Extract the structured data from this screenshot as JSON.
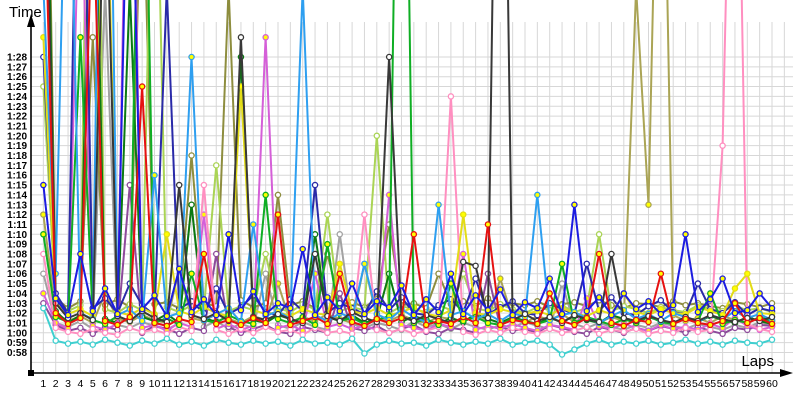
{
  "chart_data": {
    "type": "line",
    "title": "",
    "xlabel": "Laps",
    "ylabel": "Time",
    "x": [
      1,
      2,
      3,
      4,
      5,
      6,
      7,
      8,
      9,
      10,
      11,
      12,
      13,
      14,
      15,
      16,
      17,
      18,
      19,
      20,
      21,
      22,
      23,
      24,
      25,
      26,
      27,
      28,
      29,
      30,
      31,
      32,
      33,
      34,
      35,
      36,
      37,
      38,
      39,
      40,
      41,
      42,
      43,
      44,
      45,
      46,
      47,
      48,
      49,
      50,
      51,
      52,
      53,
      54,
      55,
      56,
      57,
      58,
      59,
      60
    ],
    "y_ticks": [
      "0:58",
      "0:59",
      "1:00",
      "1:01",
      "1:02",
      "1:03",
      "1:04",
      "1:05",
      "1:06",
      "1:07",
      "1:08",
      "1:09",
      "1:10",
      "1:11",
      "1:12",
      "1:13",
      "1:14",
      "1:15",
      "1:16",
      "1:17",
      "1:18",
      "1:19",
      "1:20",
      "1:21",
      "1:22",
      "1:23",
      "1:24",
      "1:25",
      "1:26",
      "1:27",
      "1:28"
    ],
    "y_tick_seconds_start": 58,
    "ylim_seconds": [
      56,
      92
    ],
    "grid": true,
    "legend": "none",
    "grid_color": "#d7d7d7",
    "axis_color": "#000000",
    "series": [
      {
        "name": "gray",
        "color": "#a2a2a2",
        "marker": "#ffffff",
        "values": [
          66.0,
          61.0,
          60.6,
          61.2,
          60.4,
          95.0,
          60.8,
          60.5,
          61.1,
          60.7,
          60.3,
          61.0,
          73.0,
          60.6,
          61.2,
          60.4,
          60.9,
          60.5,
          66.0,
          60.8,
          60.4,
          61.1,
          60.6,
          60.3,
          70.0,
          60.9,
          60.5,
          61.0,
          60.7,
          60.3,
          61.2,
          60.6,
          60.9,
          60.4,
          61.0,
          60.6,
          60.3,
          60.8,
          60.5,
          61.1,
          60.7,
          60.4,
          65.0,
          60.9,
          60.5,
          61.0,
          60.6,
          60.3,
          60.8,
          60.5,
          61.0,
          60.7,
          60.4,
          60.9,
          60.6,
          60.3,
          60.8,
          60.5,
          61.1,
          60.7
        ]
      },
      {
        "name": "olive",
        "color": "#8d8d3e",
        "marker": "#ffffff",
        "values": [
          140.0,
          63.5,
          62.5,
          63.2,
          90.0,
          62.8,
          63.4,
          62.6,
          110.0,
          62.9,
          63.1,
          62.5,
          78.0,
          63.0,
          62.7,
          95.0,
          63.3,
          62.6,
          63.0,
          74.0,
          62.8,
          63.2,
          62.5,
          68.0,
          62.9,
          63.1,
          62.6,
          63.4,
          71.0,
          62.8,
          63.0,
          62.5,
          66.0,
          62.9,
          63.2,
          62.7,
          63.5,
          62.6,
          63.0,
          62.8,
          63.2,
          62.6,
          62.9,
          63.1,
          62.7,
          63.3,
          62.8,
          62.5,
          63.0,
          62.9,
          62.6,
          63.2,
          62.8,
          63.0,
          62.7,
          62.5,
          63.1,
          62.9,
          62.6,
          63.0
        ]
      },
      {
        "name": "darkkhaki",
        "color": "#aaa455",
        "marker": "#ffff00",
        "values": [
          72.0,
          62.0,
          61.2,
          61.7,
          61.0,
          64.0,
          61.4,
          61.1,
          61.8,
          61.3,
          61.0,
          66.5,
          61.5,
          61.2,
          61.9,
          61.4,
          61.0,
          61.7,
          61.3,
          65.0,
          61.1,
          61.6,
          61.2,
          61.9,
          61.4,
          61.0,
          67.0,
          61.5,
          61.2,
          61.8,
          61.3,
          61.0,
          61.6,
          61.4,
          61.1,
          61.8,
          61.2,
          65.5,
          61.5,
          61.0,
          61.7,
          61.3,
          61.9,
          61.1,
          61.4,
          61.0,
          61.6,
          61.2,
          95.0,
          73.0,
          130.0,
          61.8,
          61.2,
          61.5,
          61.0,
          61.7,
          61.3,
          61.0,
          61.5,
          61.2
        ]
      },
      {
        "name": "yellowgreen",
        "color": "#aad455",
        "marker": "#ffffff",
        "values": [
          85.0,
          63.0,
          62.2,
          62.8,
          150.0,
          62.4,
          62.0,
          62.9,
          62.3,
          120.0,
          62.6,
          62.1,
          62.8,
          62.4,
          77.0,
          62.2,
          62.7,
          62.3,
          68.0,
          62.5,
          62.1,
          62.9,
          62.4,
          72.0,
          62.2,
          62.6,
          62.3,
          80.0,
          62.0,
          62.7,
          62.4,
          62.1,
          62.8,
          62.3,
          66.0,
          62.5,
          62.2,
          62.9,
          62.4,
          62.0,
          62.6,
          62.3,
          62.8,
          62.1,
          62.5,
          70.0,
          62.2,
          62.7,
          62.4,
          62.0,
          62.6,
          62.3,
          62.1,
          62.8,
          62.4,
          62.2,
          62.7,
          62.3,
          62.5,
          62.1
        ]
      },
      {
        "name": "darkgreen",
        "color": "#0b7a12",
        "marker": "#ffffff",
        "values": [
          130.0,
          62.2,
          61.0,
          61.8,
          120.0,
          61.4,
          61.0,
          95.0,
          61.6,
          61.2,
          61.9,
          61.0,
          73.0,
          61.5,
          61.1,
          61.7,
          88.0,
          61.3,
          61.0,
          61.8,
          61.4,
          61.0,
          70.0,
          61.6,
          61.2,
          61.8,
          61.0,
          61.4,
          66.0,
          61.1,
          61.7,
          61.3,
          60.9,
          61.5,
          61.1,
          61.9,
          61.4,
          61.0,
          61.6,
          61.2,
          60.9,
          61.5,
          61.1,
          61.7,
          61.3,
          61.0,
          61.8,
          61.4,
          61.0,
          61.6,
          61.2,
          60.9,
          61.5,
          61.1,
          61.7,
          61.3,
          61.0,
          61.6,
          61.2,
          60.9
        ]
      },
      {
        "name": "purple",
        "color": "#8d4a9b",
        "marker": "#ffffff",
        "values": [
          63.0,
          60.8,
          60.2,
          60.5,
          59.9,
          60.6,
          60.3,
          75.0,
          60.0,
          60.7,
          60.4,
          59.9,
          60.5,
          60.2,
          68.0,
          60.6,
          60.0,
          60.4,
          60.8,
          60.1,
          59.9,
          60.6,
          60.3,
          60.0,
          64.0,
          60.5,
          60.2,
          60.7,
          60.0,
          60.4,
          60.8,
          60.1,
          59.9,
          60.5,
          60.3,
          60.0,
          66.0,
          60.6,
          60.2,
          60.4,
          60.0,
          60.8,
          60.5,
          60.1,
          59.9,
          60.6,
          60.3,
          60.0,
          60.5,
          60.2,
          60.7,
          60.4,
          60.0,
          60.6,
          60.2,
          59.9,
          60.5,
          60.3,
          60.8,
          60.7
        ]
      },
      {
        "name": "orchid",
        "color": "#d55fd8",
        "marker": "#ffff00",
        "values": [
          64.0,
          61.0,
          60.4,
          110.0,
          60.7,
          60.3,
          60.9,
          130.0,
          60.5,
          60.8,
          60.2,
          61.0,
          60.6,
          72.0,
          60.4,
          60.9,
          60.3,
          60.7,
          90.0,
          60.5,
          60.8,
          60.2,
          66.0,
          60.6,
          60.9,
          60.4,
          60.7,
          60.3,
          74.0,
          60.8,
          60.5,
          60.2,
          60.9,
          60.6,
          68.0,
          60.3,
          60.7,
          60.4,
          60.9,
          60.5,
          60.2,
          60.8,
          60.6,
          60.3,
          63.5,
          60.7,
          60.4,
          60.9,
          60.5,
          60.2,
          60.8,
          60.4,
          60.6,
          60.3,
          60.9,
          60.5,
          61.5,
          60.7,
          60.3,
          60.6
        ]
      },
      {
        "name": "mediumblue",
        "color": "#2a2aa8",
        "marker": "#ffffff",
        "values": [
          88.0,
          64.0,
          62.0,
          130.0,
          62.5,
          63.5,
          62.0,
          65.0,
          62.8,
          61.8,
          95.0,
          62.4,
          63.2,
          62.0,
          64.5,
          61.9,
          62.6,
          63.8,
          62.1,
          61.8,
          63.4,
          62.2,
          75.0,
          62.0,
          63.0,
          62.5,
          61.9,
          64.2,
          62.3,
          63.6,
          62.0,
          61.8,
          62.8,
          63.4,
          62.1,
          65.5,
          61.9,
          62.6,
          63.2,
          62.0,
          61.8,
          63.0,
          62.4,
          61.9,
          67.0,
          62.2,
          63.6,
          62.0,
          61.8,
          62.7,
          63.3,
          62.1,
          61.9,
          65.0,
          62.4,
          62.0,
          63.1,
          61.8,
          62.5,
          62.2
        ]
      },
      {
        "name": "pink",
        "color": "#ff8fc0",
        "marker": "#ffffff",
        "values": [
          68.0,
          60.5,
          60.1,
          59.9,
          60.4,
          60.0,
          59.8,
          60.5,
          60.1,
          60.3,
          59.9,
          60.6,
          60.2,
          75.0,
          60.3,
          59.9,
          60.4,
          60.0,
          60.6,
          60.1,
          60.3,
          59.8,
          60.5,
          60.0,
          60.2,
          59.9,
          72.0,
          60.3,
          60.0,
          60.4,
          59.9,
          60.2,
          60.6,
          84.0,
          60.1,
          59.8,
          60.3,
          60.0,
          60.5,
          60.1,
          59.9,
          60.4,
          60.0,
          60.2,
          60.6,
          59.9,
          60.3,
          60.1,
          60.4,
          59.9,
          60.2,
          60.0,
          60.5,
          60.1,
          60.3,
          79.0,
          135.0,
          60.9,
          60.4,
          60.1
        ]
      },
      {
        "name": "turquoise",
        "color": "#3ecfcf",
        "marker": "#ffffff",
        "values": [
          62.5,
          59.2,
          58.9,
          59.1,
          58.8,
          59.3,
          59.0,
          58.7,
          59.2,
          58.9,
          59.4,
          58.8,
          59.1,
          58.7,
          59.3,
          59.0,
          58.8,
          59.2,
          58.9,
          59.1,
          58.7,
          59.3,
          58.9,
          59.0,
          58.8,
          59.4,
          57.9,
          58.8,
          59.2,
          58.9,
          59.0,
          58.7,
          59.3,
          59.0,
          58.8,
          59.1,
          58.9,
          59.4,
          58.8,
          59.0,
          59.2,
          58.8,
          57.8,
          58.3,
          58.9,
          59.3,
          58.8,
          59.1,
          58.9,
          59.2,
          58.8,
          59.0,
          59.3,
          58.9,
          59.1,
          58.8,
          59.2,
          59.0,
          58.9,
          59.3
        ]
      },
      {
        "name": "yellow",
        "color": "#e3dc16",
        "marker": "#ffff00",
        "values": [
          90.0,
          63.0,
          61.9,
          62.4,
          61.7,
          115.0,
          62.1,
          61.8,
          62.5,
          61.9,
          70.0,
          62.2,
          61.8,
          62.6,
          62.0,
          61.7,
          85.0,
          62.3,
          61.9,
          62.1,
          61.7,
          62.4,
          62.0,
          61.8,
          67.0,
          62.2,
          61.9,
          62.5,
          61.8,
          62.1,
          62.6,
          61.9,
          61.7,
          62.3,
          72.0,
          62.0,
          61.8,
          62.4,
          62.1,
          61.9,
          62.2,
          61.8,
          62.5,
          62.0,
          61.7,
          62.3,
          61.9,
          64.0,
          62.1,
          61.8,
          62.4,
          62.0,
          61.9,
          62.6,
          62.2,
          61.8,
          64.5,
          66.0,
          62.0,
          61.9
        ]
      },
      {
        "name": "green",
        "color": "#0fae24",
        "marker": "#ffff00",
        "values": [
          70.0,
          61.6,
          61.1,
          90.0,
          61.3,
          60.9,
          61.7,
          61.2,
          130.0,
          61.0,
          61.5,
          60.8,
          66.0,
          61.3,
          61.0,
          61.8,
          61.2,
          60.9,
          74.0,
          61.4,
          61.0,
          61.6,
          60.8,
          69.0,
          61.2,
          61.5,
          60.9,
          61.3,
          61.7,
          150.0,
          61.0,
          61.4,
          60.8,
          65.0,
          61.2,
          61.6,
          61.0,
          60.8,
          61.5,
          61.1,
          60.9,
          61.3,
          67.0,
          61.0,
          61.6,
          61.2,
          60.8,
          61.4,
          61.0,
          61.7,
          61.1,
          60.9,
          61.5,
          61.2,
          64.0,
          60.9,
          61.3,
          61.0,
          61.6,
          61.2
        ]
      },
      {
        "name": "deepskyblue",
        "color": "#2e9ff0",
        "marker": "#ffff00",
        "values": [
          95.0,
          66.0,
          120.0,
          62.0,
          61.4,
          150.0,
          61.8,
          62.4,
          61.2,
          76.0,
          61.6,
          62.0,
          88.0,
          61.3,
          61.9,
          62.5,
          61.1,
          71.0,
          61.7,
          62.2,
          61.4,
          95.0,
          61.8,
          61.2,
          62.0,
          61.5,
          67.0,
          61.9,
          61.3,
          62.4,
          61.6,
          61.1,
          73.0,
          61.8,
          62.2,
          61.4,
          61.9,
          61.2,
          62.0,
          61.6,
          74.0,
          61.3,
          61.8,
          62.1,
          61.5,
          61.0,
          61.7,
          62.3,
          61.4,
          61.9,
          61.2,
          62.0,
          61.6,
          61.1,
          61.8,
          61.4,
          62.2,
          61.5,
          61.9,
          61.3
        ]
      },
      {
        "name": "black",
        "color": "#383838",
        "marker": "#ffffff",
        "values": [
          120.0,
          63.0,
          61.5,
          62.0,
          61.3,
          110.0,
          61.7,
          61.2,
          62.2,
          61.5,
          61.1,
          75.0,
          61.8,
          61.4,
          62.0,
          61.2,
          90.0,
          61.6,
          61.3,
          61.9,
          61.4,
          61.0,
          68.0,
          61.7,
          61.2,
          62.1,
          61.5,
          61.1,
          88.0,
          61.6,
          61.2,
          61.8,
          61.4,
          61.0,
          67.2,
          66.8,
          61.5,
          150.0,
          61.3,
          61.9,
          61.2,
          61.6,
          61.0,
          61.8,
          61.4,
          61.1,
          68.0,
          61.5,
          61.2,
          61.7,
          61.3,
          61.0,
          61.6,
          61.2,
          61.8,
          61.4,
          61.1,
          61.5,
          61.2,
          61.6
        ]
      },
      {
        "name": "red",
        "color": "#e61111",
        "marker": "#ffff00",
        "values": [
          110.0,
          62.0,
          60.9,
          61.5,
          105.0,
          61.2,
          60.8,
          61.6,
          85.0,
          61.0,
          60.7,
          61.4,
          61.1,
          68.0,
          60.9,
          61.3,
          60.8,
          61.5,
          61.0,
          72.0,
          60.8,
          61.2,
          61.6,
          60.9,
          66.0,
          61.1,
          60.7,
          61.4,
          61.0,
          61.5,
          70.0,
          60.8,
          61.2,
          60.9,
          61.6,
          61.0,
          71.0,
          60.8,
          61.3,
          61.1,
          60.9,
          64.0,
          61.2,
          60.8,
          61.5,
          68.0,
          61.0,
          60.7,
          61.3,
          61.1,
          66.0,
          60.9,
          61.4,
          61.0,
          60.8,
          61.2,
          63.0,
          61.0,
          61.5,
          60.9
        ]
      },
      {
        "name": "blue",
        "color": "#1c1ce0",
        "marker": "#ffff00",
        "values": [
          75.0,
          63.5,
          61.8,
          68.0,
          62.2,
          64.5,
          61.9,
          120.0,
          62.4,
          63.8,
          61.7,
          66.5,
          62.1,
          63.4,
          61.8,
          70.0,
          62.3,
          64.2,
          61.9,
          63.0,
          62.5,
          68.5,
          61.8,
          63.6,
          62.2,
          65.0,
          61.9,
          63.2,
          62.6,
          64.8,
          61.8,
          63.4,
          62.1,
          66.0,
          61.9,
          63.8,
          62.3,
          64.4,
          61.8,
          63.1,
          62.5,
          65.5,
          61.9,
          73.0,
          62.2,
          63.6,
          61.8,
          64.0,
          62.4,
          63.2,
          61.9,
          62.8,
          70.0,
          62.1,
          63.4,
          65.5,
          62.0,
          62.3,
          64.0,
          62.5
        ]
      }
    ]
  }
}
